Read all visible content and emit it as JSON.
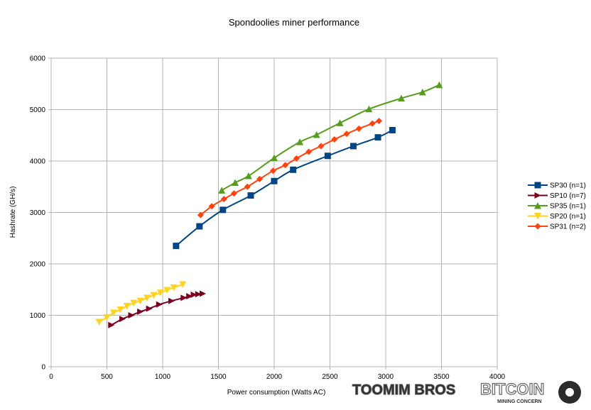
{
  "chart_data": {
    "type": "line",
    "title": "Spondoolies miner performance",
    "xlabel": "Power consumption (Watts AC)",
    "ylabel": "Hashrate (GH/s)",
    "xlim": [
      0,
      4000
    ],
    "ylim": [
      0,
      6000
    ],
    "xticks": [
      "0",
      "500",
      "1000",
      "1500",
      "2000",
      "2500",
      "3000",
      "3500",
      "4000"
    ],
    "yticks": [
      "0",
      "1000",
      "2000",
      "3000",
      "4000",
      "5000",
      "6000"
    ],
    "grid": true,
    "legend_position": "right",
    "series": [
      {
        "name": "SP30 (n=1)",
        "color": "#004586",
        "marker": "square",
        "x": [
          1120,
          1330,
          1540,
          1790,
          2000,
          2170,
          2480,
          2710,
          2930,
          3060
        ],
        "y": [
          2350,
          2730,
          3050,
          3330,
          3610,
          3830,
          4100,
          4290,
          4460,
          4600
        ]
      },
      {
        "name": "SP10 (n=7)",
        "color": "#7e0021",
        "marker": "triangle-right",
        "x": [
          540,
          640,
          720,
          800,
          880,
          970,
          1080,
          1190,
          1240,
          1280,
          1320,
          1360
        ],
        "y": [
          810,
          930,
          1000,
          1070,
          1130,
          1210,
          1280,
          1340,
          1370,
          1400,
          1410,
          1420
        ]
      },
      {
        "name": "SP35 (n=1)",
        "color": "#579d1c",
        "marker": "triangle-up",
        "x": [
          1530,
          1650,
          1770,
          2000,
          2230,
          2380,
          2590,
          2850,
          3140,
          3330,
          3480
        ],
        "y": [
          3430,
          3580,
          3710,
          4060,
          4370,
          4510,
          4740,
          5010,
          5220,
          5340,
          5480
        ]
      },
      {
        "name": "SP20 (n=1)",
        "color": "#ffd320",
        "marker": "triangle-down",
        "x": [
          430,
          500,
          560,
          620,
          680,
          740,
          800,
          860,
          920,
          980,
          1040,
          1100,
          1180
        ],
        "y": [
          870,
          960,
          1050,
          1110,
          1180,
          1240,
          1280,
          1340,
          1390,
          1440,
          1490,
          1540,
          1600
        ]
      },
      {
        "name": "SP31 (n=2)",
        "color": "#ff420e",
        "marker": "diamond",
        "x": [
          1340,
          1440,
          1550,
          1640,
          1760,
          1870,
          1990,
          2100,
          2200,
          2310,
          2420,
          2540,
          2650,
          2760,
          2880,
          2940
        ],
        "y": [
          2950,
          3120,
          3260,
          3370,
          3500,
          3650,
          3810,
          3920,
          4050,
          4180,
          4290,
          4420,
          4530,
          4630,
          4730,
          4780
        ]
      }
    ]
  },
  "watermarks": {
    "toomim": "TOOMIM BROS",
    "bitcoin": "BITCOIN",
    "bitcoin_sub": "MINING CONCERN"
  }
}
